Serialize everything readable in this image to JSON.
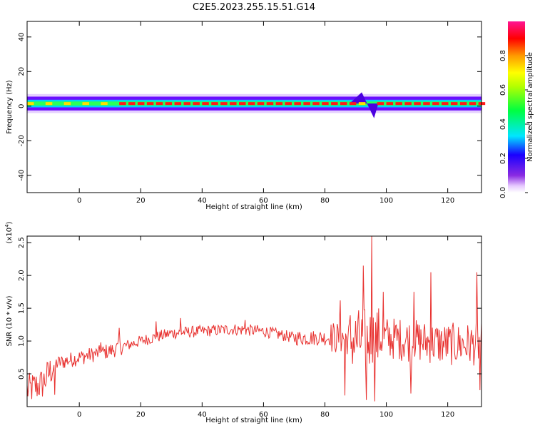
{
  "figure": {
    "title": "C2E5.2023.255.15.51.G14"
  },
  "chart_data": [
    {
      "type": "heatmap",
      "title": "C2E5.2023.255.15.51.G14",
      "xlabel": "Height of straight line (km)",
      "ylabel": "Frequency (Hz)",
      "xlim": [
        -17,
        131
      ],
      "ylim": [
        -50,
        49
      ],
      "x_ticks": [
        0,
        20,
        40,
        60,
        80,
        100,
        120
      ],
      "x_tick_labels": [
        "0",
        "20",
        "40",
        "60",
        "80",
        "100",
        "120"
      ],
      "y_ticks": [
        -40,
        -20,
        0,
        20,
        40
      ],
      "y_tick_labels": [
        "-40",
        "-20",
        "0",
        "20",
        "40"
      ],
      "band": {
        "center_hz": 1.5,
        "half_width_hz": 4,
        "disturbance_x_km": [
          88,
          96
        ],
        "disturbance_min_hz": -7,
        "disturbance_max_hz": 8
      },
      "colorbar": {
        "label": "Normalized spectral amplitude",
        "range": [
          0,
          1
        ],
        "ticks": [
          0.0,
          0.2,
          0.4,
          0.6,
          0.8
        ],
        "tick_labels": [
          "0.0",
          "0.2",
          "0.4",
          "0.6",
          "0.8"
        ],
        "colormap": "rainbow (white → violet → blue → cyan → green → yellow → orange → red → magenta)"
      },
      "grid": false
    },
    {
      "type": "line",
      "xlabel": "Height of straight line (km)",
      "ylabel": "SNR (10 * v/v)",
      "y_multiplier_label": "(x10",
      "y_multiplier_exp": "4",
      "y_multiplier_close": ")",
      "xlim": [
        -17,
        131
      ],
      "ylim": [
        0,
        2.6
      ],
      "x_ticks": [
        0,
        20,
        40,
        60,
        80,
        100,
        120
      ],
      "x_tick_labels": [
        "0",
        "20",
        "40",
        "60",
        "80",
        "100",
        "120"
      ],
      "y_ticks": [
        0.5,
        1.0,
        1.5,
        2.0,
        2.5
      ],
      "y_tick_labels": [
        "0.5",
        "1.0",
        "1.5",
        "2.0",
        "2.5"
      ],
      "line_color": "#e8312f",
      "grid": false,
      "trend": [
        {
          "x": -17,
          "y": 0.25
        },
        {
          "x": -12,
          "y": 0.35
        },
        {
          "x": -8,
          "y": 0.65
        },
        {
          "x": 0,
          "y": 0.75
        },
        {
          "x": 10,
          "y": 0.85
        },
        {
          "x": 20,
          "y": 1.0
        },
        {
          "x": 30,
          "y": 1.12
        },
        {
          "x": 40,
          "y": 1.15
        },
        {
          "x": 50,
          "y": 1.18
        },
        {
          "x": 60,
          "y": 1.15
        },
        {
          "x": 70,
          "y": 1.05
        },
        {
          "x": 80,
          "y": 1.05
        },
        {
          "x": 86,
          "y": 1.05
        },
        {
          "x": 90,
          "y": 1.0
        },
        {
          "x": 100,
          "y": 1.05
        },
        {
          "x": 110,
          "y": 1.0
        },
        {
          "x": 120,
          "y": 0.95
        },
        {
          "x": 131,
          "y": 0.95
        }
      ],
      "peaks": [
        {
          "x": -8,
          "y": 0.18
        },
        {
          "x": 7,
          "y": 0.98
        },
        {
          "x": 13,
          "y": 1.2
        },
        {
          "x": 25,
          "y": 1.3
        },
        {
          "x": 33,
          "y": 1.35
        },
        {
          "x": 54,
          "y": 1.32
        },
        {
          "x": 85,
          "y": 1.62
        },
        {
          "x": 86.5,
          "y": 0.17
        },
        {
          "x": 92.5,
          "y": 2.15
        },
        {
          "x": 93.5,
          "y": 0.1
        },
        {
          "x": 95.3,
          "y": 2.6
        },
        {
          "x": 96.3,
          "y": 0.08
        },
        {
          "x": 99,
          "y": 1.75
        },
        {
          "x": 108,
          "y": 0.2
        },
        {
          "x": 109,
          "y": 1.75
        },
        {
          "x": 114.5,
          "y": 2.05
        },
        {
          "x": 129.5,
          "y": 2.05
        },
        {
          "x": 130.5,
          "y": 0.25
        }
      ]
    }
  ]
}
